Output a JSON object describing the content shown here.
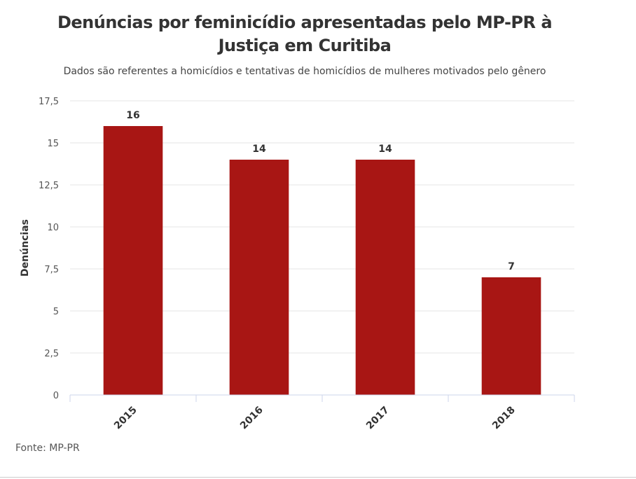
{
  "chart_data": {
    "type": "bar",
    "title": "Denúncias por feminicídio apresentadas pelo MP-PR à Justiça em Curitiba",
    "subtitle": "Dados são referentes a homicídios e tentativas de homicídios de mulheres motivados pelo gênero",
    "xlabel": "",
    "ylabel": "Denúncias",
    "categories": [
      "2015",
      "2016",
      "2017",
      "2018"
    ],
    "values": [
      16,
      14,
      14,
      7
    ],
    "ylim": [
      0,
      17.5
    ],
    "yticks": [
      "0",
      "2,5",
      "5",
      "7,5",
      "10",
      "12,5",
      "15",
      "17,5"
    ],
    "ytick_values": [
      0,
      2.5,
      5,
      7.5,
      10,
      12.5,
      15,
      17.5
    ],
    "grid": true,
    "bar_color": "#a81614",
    "source": "Fonte: MP-PR"
  }
}
